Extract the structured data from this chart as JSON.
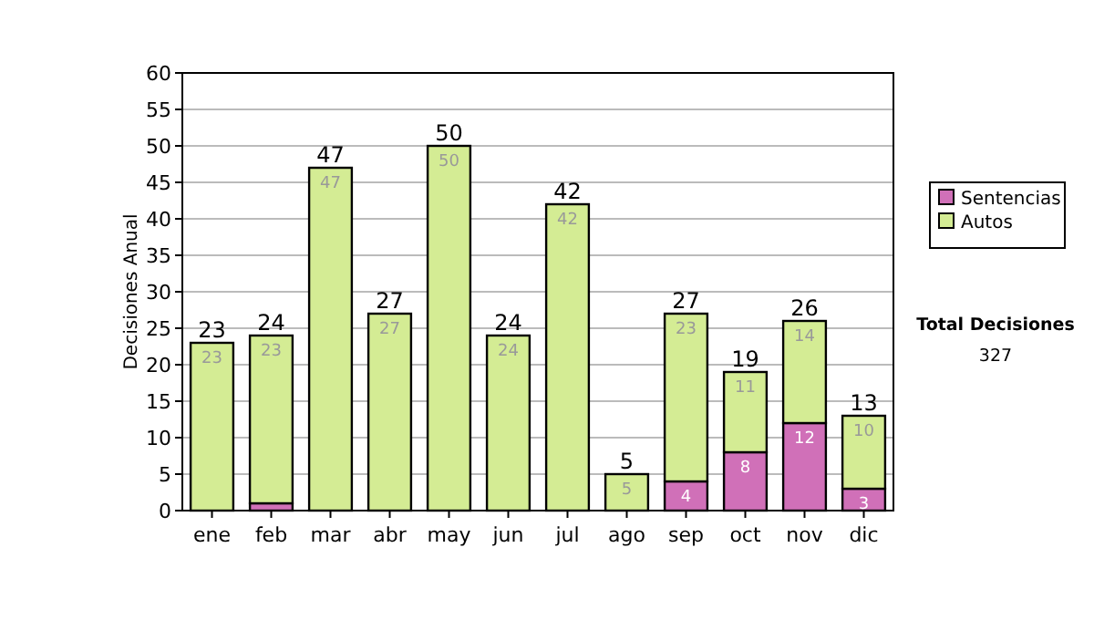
{
  "chart_data": {
    "type": "bar",
    "stacked": true,
    "ylabel": "Decisiones Anual",
    "categories": [
      "ene",
      "feb",
      "mar",
      "abr",
      "may",
      "jun",
      "jul",
      "ago",
      "sep",
      "oct",
      "nov",
      "dic"
    ],
    "series": [
      {
        "name": "Sentencias",
        "color": "#d070b8",
        "values": [
          0,
          1,
          0,
          0,
          0,
          0,
          0,
          0,
          4,
          8,
          12,
          3
        ],
        "value_labels": [
          null,
          null,
          null,
          null,
          null,
          null,
          null,
          null,
          "4",
          "8",
          "12",
          "3"
        ]
      },
      {
        "name": "Autos",
        "color": "#d4ec94",
        "values": [
          23,
          23,
          47,
          27,
          50,
          24,
          42,
          5,
          23,
          11,
          14,
          10
        ],
        "value_labels": [
          "23",
          "23",
          "47",
          "27",
          "50",
          "24",
          "42",
          "5",
          "23",
          "11",
          "14",
          "10"
        ]
      }
    ],
    "totals": [
      "23",
      "24",
      "47",
      "27",
      "50",
      "24",
      "42",
      "5",
      "27",
      "19",
      "26",
      "13"
    ],
    "ylim": [
      0,
      60
    ],
    "yticks": [
      0,
      5,
      10,
      15,
      20,
      25,
      30,
      35,
      40,
      45,
      50,
      55,
      60
    ],
    "grid": "y",
    "legend": "right",
    "annotations": [
      "Total Decisiones",
      "327"
    ]
  }
}
